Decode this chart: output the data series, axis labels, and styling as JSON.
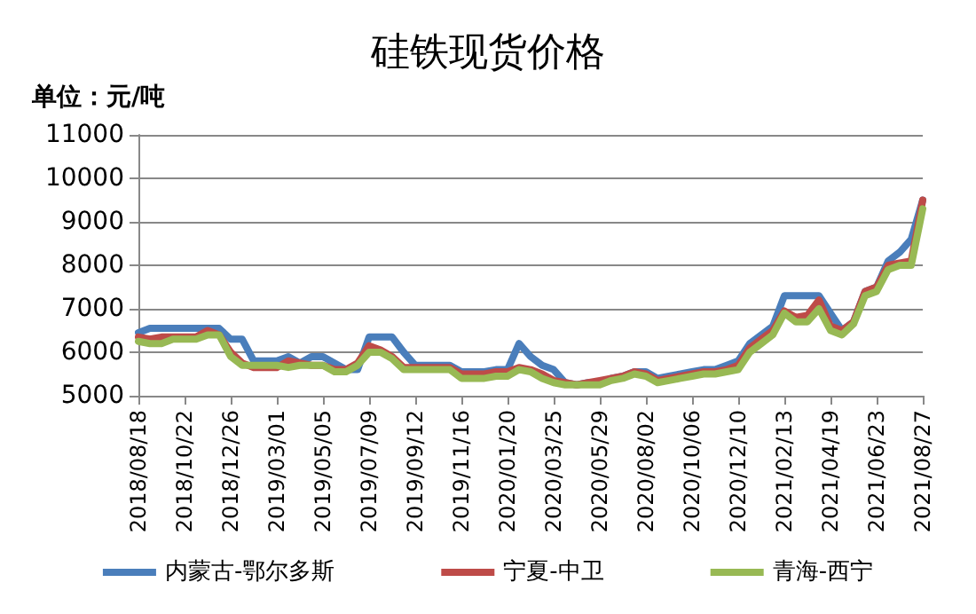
{
  "chart_data": {
    "type": "line",
    "title": "硅铁现货价格",
    "ylabel": "单位：元/吨",
    "categories": [
      "2018/08/18",
      null,
      null,
      null,
      "2018/10/22",
      null,
      null,
      null,
      "2018/12/26",
      null,
      null,
      null,
      "2019/03/01",
      null,
      null,
      null,
      "2019/05/05",
      null,
      null,
      null,
      "2019/07/09",
      null,
      null,
      null,
      "2019/09/12",
      null,
      null,
      null,
      "2019/11/16",
      null,
      null,
      null,
      "2020/01/20",
      null,
      null,
      null,
      "2020/03/25",
      null,
      null,
      null,
      "2020/05/29",
      null,
      null,
      null,
      "2020/08/02",
      null,
      null,
      null,
      "2020/10/06",
      null,
      null,
      null,
      "2020/12/10",
      null,
      null,
      null,
      "2021/02/13",
      null,
      null,
      null,
      "2021/04/19",
      null,
      null,
      null,
      "2021/06/23",
      null,
      null,
      null,
      "2021/08/27"
    ],
    "series": [
      {
        "name": "内蒙古-鄂尔多斯",
        "color": "#4a7ebb",
        "values": [
          6450,
          6550,
          6550,
          6550,
          6550,
          6550,
          6550,
          6550,
          6300,
          6300,
          5800,
          5800,
          5800,
          5900,
          5750,
          5900,
          5900,
          5750,
          5600,
          5600,
          6350,
          6350,
          6350,
          6000,
          5700,
          5700,
          5700,
          5700,
          5550,
          5550,
          5550,
          5600,
          5600,
          6200,
          5900,
          5700,
          5600,
          5300,
          5250,
          5300,
          5300,
          5400,
          5450,
          5550,
          5550,
          5400,
          5450,
          5500,
          5550,
          5600,
          5600,
          5700,
          5800,
          6200,
          6400,
          6600,
          7300,
          7300,
          7300,
          7300,
          6900,
          6500,
          6700,
          7400,
          7500,
          8100,
          8300,
          8600,
          9500
        ]
      },
      {
        "name": "宁夏-中卫",
        "color": "#be4b48",
        "values": [
          6350,
          6300,
          6350,
          6350,
          6350,
          6350,
          6500,
          6400,
          6000,
          5750,
          5650,
          5650,
          5650,
          5800,
          5750,
          5700,
          5700,
          5600,
          5600,
          5750,
          6150,
          6050,
          5900,
          5650,
          5650,
          5650,
          5650,
          5650,
          5500,
          5500,
          5500,
          5550,
          5550,
          5650,
          5600,
          5500,
          5350,
          5300,
          5250,
          5300,
          5350,
          5400,
          5450,
          5550,
          5500,
          5350,
          5400,
          5450,
          5500,
          5550,
          5550,
          5600,
          5700,
          6100,
          6300,
          6500,
          6950,
          6800,
          6850,
          7200,
          6600,
          6500,
          6700,
          7400,
          7500,
          8000,
          8050,
          8100,
          9500
        ]
      },
      {
        "name": "青海-西宁",
        "color": "#98b954",
        "values": [
          6250,
          6200,
          6200,
          6300,
          6300,
          6300,
          6400,
          6400,
          5900,
          5700,
          5700,
          5700,
          5700,
          5650,
          5700,
          5700,
          5700,
          5550,
          5550,
          5700,
          6000,
          6000,
          5850,
          5600,
          5600,
          5600,
          5600,
          5600,
          5400,
          5400,
          5400,
          5450,
          5450,
          5600,
          5550,
          5400,
          5300,
          5250,
          5250,
          5250,
          5250,
          5350,
          5400,
          5500,
          5450,
          5300,
          5350,
          5400,
          5450,
          5500,
          5500,
          5550,
          5600,
          6000,
          6200,
          6400,
          6900,
          6700,
          6700,
          7000,
          6500,
          6400,
          6650,
          7300,
          7400,
          7900,
          8000,
          8000,
          9300
        ]
      }
    ],
    "ylim": [
      5000,
      11000
    ],
    "yticks": [
      5000,
      6000,
      7000,
      8000,
      9000,
      10000,
      11000
    ],
    "grid": "y",
    "legend": "bottom",
    "marker": "none"
  }
}
